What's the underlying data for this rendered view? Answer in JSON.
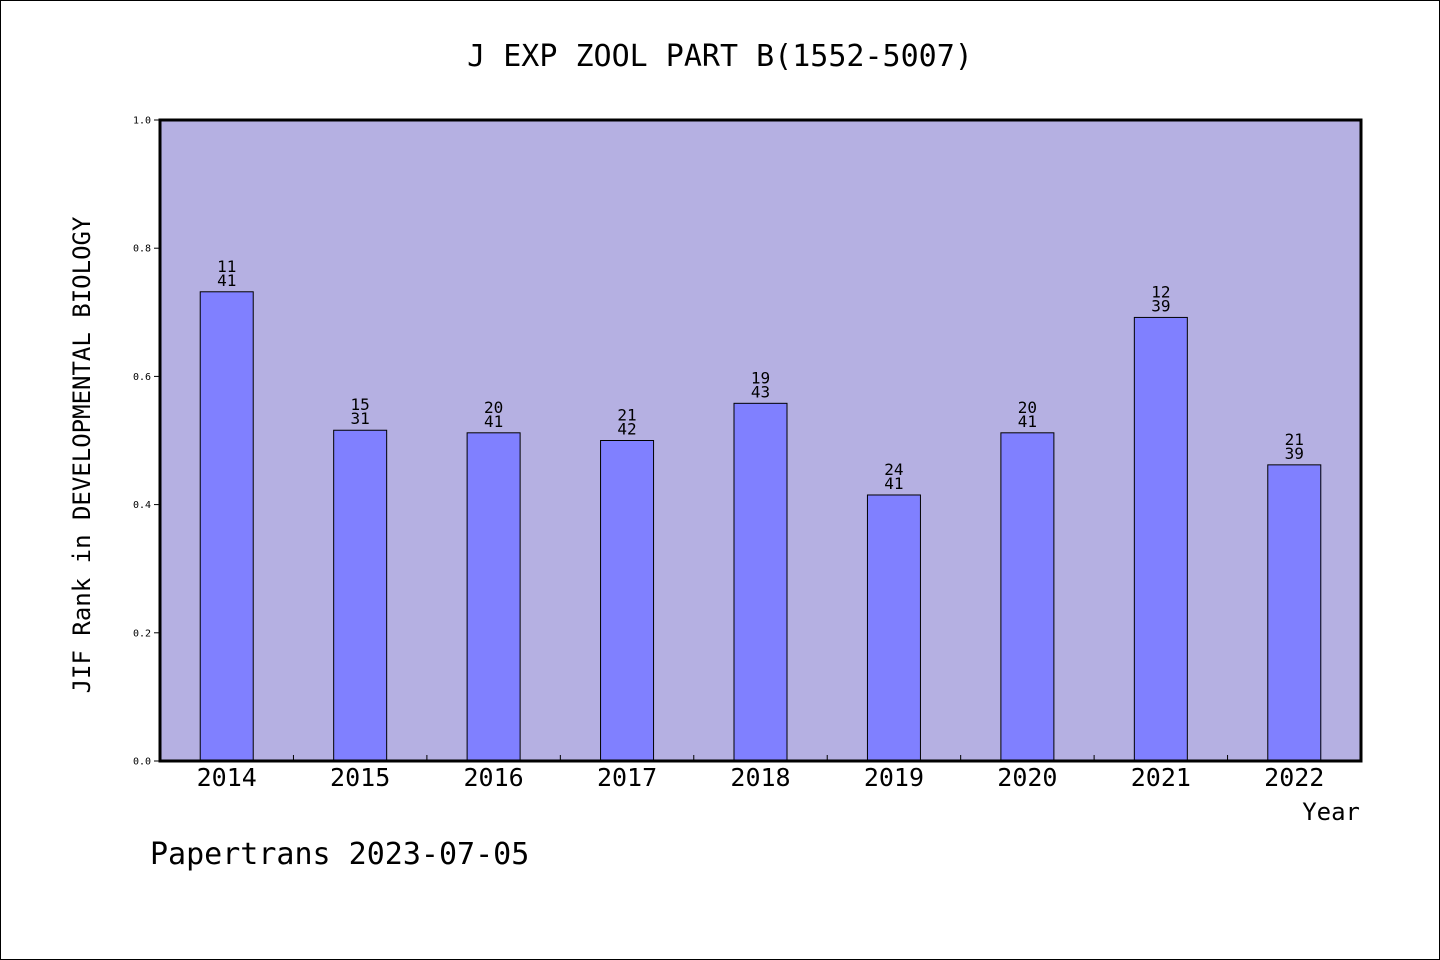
{
  "chart_data": {
    "type": "bar",
    "title": "J EXP ZOOL PART B(1552-5007)",
    "ylabel": "JIF Rank in DEVELOPMENTAL BIOLOGY",
    "xlabel": "Year",
    "ylim": [
      0,
      1.0
    ],
    "yticks": [
      "0.0",
      "0.2",
      "0.4",
      "0.6",
      "0.8",
      "1.0"
    ],
    "categories": [
      "2014",
      "2015",
      "2016",
      "2017",
      "2018",
      "2019",
      "2020",
      "2021",
      "2022"
    ],
    "values": [
      0.732,
      0.516,
      0.512,
      0.5,
      0.558,
      0.415,
      0.512,
      0.692,
      0.462
    ],
    "labels": [
      {
        "rank": "11",
        "total": "41"
      },
      {
        "rank": "15",
        "total": "31"
      },
      {
        "rank": "20",
        "total": "41"
      },
      {
        "rank": "21",
        "total": "42"
      },
      {
        "rank": "19",
        "total": "43"
      },
      {
        "rank": "24",
        "total": "41"
      },
      {
        "rank": "20",
        "total": "41"
      },
      {
        "rank": "12",
        "total": "39"
      },
      {
        "rank": "21",
        "total": "39"
      }
    ],
    "plot_background": "#b5b0e2",
    "bar_color": "#8080ff",
    "grid": false
  },
  "footer": "Papertrans 2023-07-05"
}
